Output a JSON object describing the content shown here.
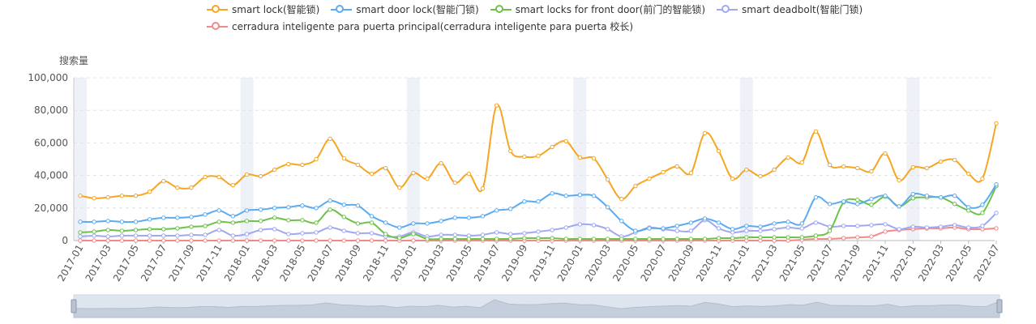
{
  "chart_data": {
    "type": "line",
    "ylabel": "搜索量",
    "ylim": [
      0,
      100000
    ],
    "yticks": [
      "0",
      "20,000",
      "40,000",
      "60,000",
      "80,000",
      "100,000"
    ],
    "x": [
      "2017-01",
      "2017-02",
      "2017-03",
      "2017-04",
      "2017-05",
      "2017-06",
      "2017-07",
      "2017-08",
      "2017-09",
      "2017-10",
      "2017-11",
      "2017-12",
      "2018-01",
      "2018-02",
      "2018-03",
      "2018-04",
      "2018-05",
      "2018-06",
      "2018-07",
      "2018-08",
      "2018-09",
      "2018-10",
      "2018-11",
      "2018-12",
      "2019-01",
      "2019-02",
      "2019-03",
      "2019-04",
      "2019-05",
      "2019-06",
      "2019-07",
      "2019-08",
      "2019-09",
      "2019-10",
      "2019-11",
      "2019-12",
      "2020-01",
      "2020-02",
      "2020-03",
      "2020-04",
      "2020-05",
      "2020-06",
      "2020-07",
      "2020-08",
      "2020-09",
      "2020-10",
      "2020-11",
      "2020-12",
      "2021-01",
      "2021-02",
      "2021-03",
      "2021-04",
      "2021-05",
      "2021-06",
      "2021-07",
      "2021-08",
      "2021-09",
      "2021-10",
      "2021-11",
      "2021-12",
      "2022-01",
      "2022-02",
      "2022-03",
      "2022-04",
      "2022-05",
      "2022-06",
      "2022-07"
    ],
    "xticks_shown": [
      "2017-01",
      "2017-03",
      "2017-05",
      "2017-07",
      "2017-09",
      "2017-11",
      "2018-01",
      "2018-03",
      "2018-05",
      "2018-07",
      "2018-09",
      "2018-11",
      "2019-01",
      "2019-03",
      "2019-05",
      "2019-07",
      "2019-09",
      "2019-11",
      "2020-01",
      "2020-03",
      "2020-05",
      "2020-07",
      "2020-09",
      "2020-11",
      "2021-01",
      "2021-03",
      "2021-05",
      "2021-07",
      "2021-09",
      "2021-11",
      "2022-01",
      "2022-03",
      "2022-05",
      "2022-07"
    ],
    "year_bands": [
      "2017-01",
      "2018-01",
      "2019-01",
      "2020-01",
      "2021-01",
      "2022-01"
    ],
    "grid": true,
    "legend_position": "top-center",
    "series": [
      {
        "name": "smart lock(智能锁)",
        "color": "#f5a623",
        "values": [
          27500,
          26000,
          26500,
          27500,
          27500,
          30000,
          36500,
          32500,
          32500,
          39000,
          39000,
          34000,
          40500,
          39500,
          43500,
          47000,
          46500,
          50000,
          62500,
          50500,
          46500,
          41000,
          44500,
          32500,
          41500,
          38000,
          47500,
          35500,
          41000,
          32000,
          83000,
          55000,
          51500,
          52000,
          57500,
          61000,
          51000,
          50500,
          37500,
          25500,
          33500,
          38000,
          42000,
          45500,
          41500,
          66000,
          55000,
          38000,
          43500,
          39500,
          43500,
          51000,
          48000,
          67000,
          46500,
          45500,
          44500,
          42500,
          53500,
          37000,
          45000,
          44500,
          48500,
          49500,
          41000,
          38000,
          72000
        ]
      },
      {
        "name": "smart door lock(智能门锁)",
        "color": "#5aabf0",
        "values": [
          11500,
          11500,
          12000,
          11500,
          11500,
          13000,
          14000,
          14000,
          14500,
          16000,
          18500,
          15000,
          18500,
          19000,
          20000,
          20500,
          21500,
          20000,
          24500,
          22000,
          21500,
          15000,
          11000,
          8000,
          10500,
          10500,
          12000,
          14000,
          14000,
          15000,
          18500,
          19500,
          24000,
          24000,
          29000,
          27500,
          28000,
          27500,
          20500,
          12000,
          6000,
          7500,
          7500,
          9000,
          11000,
          13500,
          11000,
          7000,
          9000,
          8500,
          10500,
          11500,
          10500,
          26500,
          22500,
          24000,
          22500,
          25500,
          27500,
          21000,
          28500,
          27500,
          26500,
          27500,
          20500,
          22000,
          34500
        ]
      },
      {
        "name": "smart locks for front door(前门的智能锁)",
        "color": "#6cc24a",
        "values": [
          5000,
          5500,
          6500,
          6000,
          6500,
          7000,
          7000,
          7500,
          8500,
          9000,
          11500,
          11000,
          12000,
          12000,
          14000,
          12500,
          12500,
          11000,
          19000,
          14500,
          10500,
          11000,
          4000,
          1500,
          4000,
          1000,
          1000,
          1000,
          1000,
          1000,
          1000,
          1000,
          1500,
          1500,
          1500,
          1000,
          1000,
          1000,
          1000,
          1000,
          1000,
          1000,
          1000,
          1000,
          1000,
          1000,
          1500,
          1500,
          2000,
          2000,
          2000,
          2000,
          2000,
          3000,
          6000,
          23500,
          25000,
          22000,
          27000,
          21000,
          26000,
          26500,
          26500,
          22500,
          18500,
          17000,
          33500
        ]
      },
      {
        "name": "smart deadbolt(智能门锁)",
        "color": "#9fa8f0",
        "values": [
          2500,
          3000,
          2500,
          3000,
          3000,
          3000,
          3000,
          3000,
          3500,
          3500,
          6500,
          3000,
          4000,
          6500,
          7000,
          4000,
          4500,
          5000,
          8000,
          6000,
          4500,
          4500,
          2500,
          2500,
          5000,
          2500,
          3500,
          3500,
          3000,
          3500,
          5000,
          4000,
          4500,
          5500,
          6500,
          8000,
          10000,
          9500,
          7000,
          2500,
          5000,
          8000,
          7000,
          6000,
          6000,
          12500,
          7500,
          5000,
          6000,
          6000,
          7000,
          8000,
          7500,
          11000,
          8500,
          9000,
          9000,
          9500,
          10000,
          7000,
          8500,
          8000,
          8500,
          9500,
          8000,
          9000,
          17000
        ]
      },
      {
        "name": "cerradura inteligente para puerta principal(cerradura inteligente para puerta 校长)",
        "color": "#f08a8a",
        "values": [
          0,
          0,
          0,
          0,
          0,
          0,
          0,
          0,
          0,
          0,
          0,
          0,
          0,
          0,
          0,
          0,
          0,
          0,
          0,
          0,
          0,
          0,
          0,
          0,
          0,
          0,
          0,
          0,
          0,
          0,
          0,
          0,
          0,
          0,
          0,
          0,
          0,
          0,
          0,
          0,
          0,
          0,
          0,
          0,
          0,
          0,
          0,
          0,
          0,
          0,
          0,
          0,
          500,
          1000,
          1000,
          1500,
          2000,
          2500,
          5500,
          6500,
          7000,
          7500,
          7500,
          8000,
          7000,
          7000,
          7500
        ]
      }
    ]
  },
  "datazoom": {
    "start": "2017-01",
    "end": "2022-07"
  }
}
